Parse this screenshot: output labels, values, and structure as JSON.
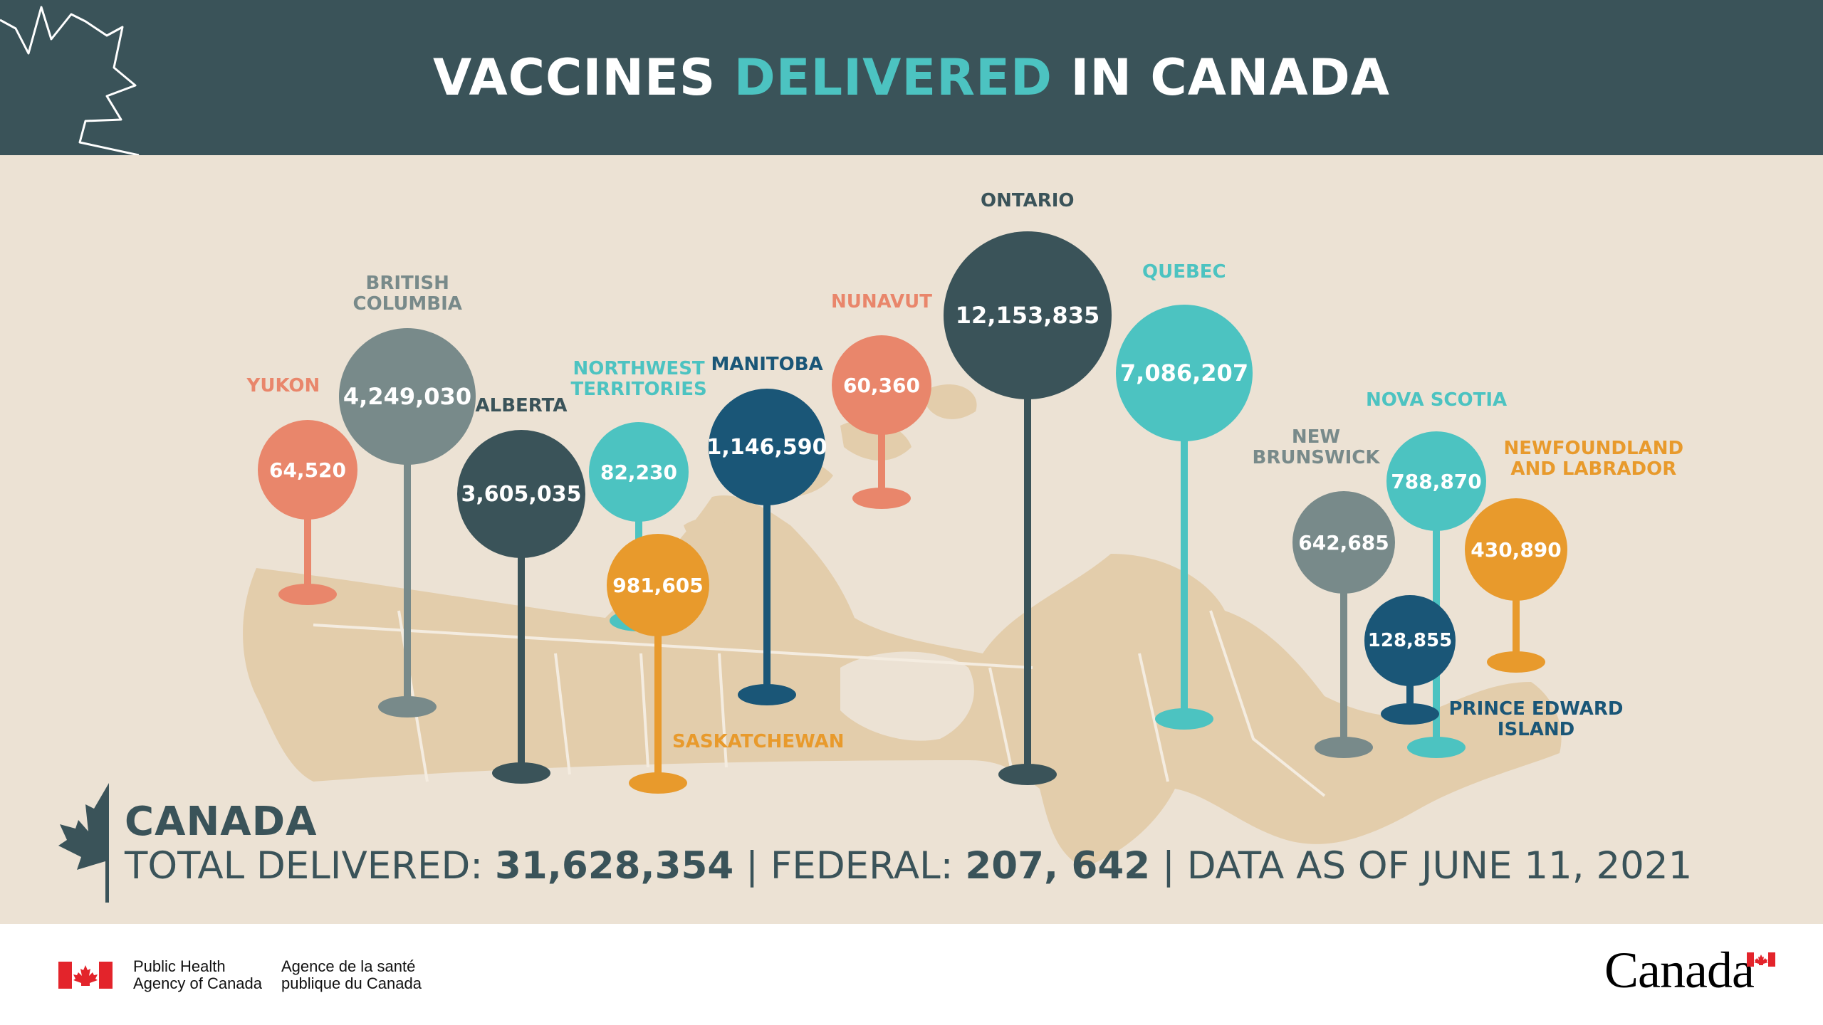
{
  "title": {
    "part1": "VACCINES ",
    "highlight": "DELIVERED",
    "part2": " IN CANADA"
  },
  "colors": {
    "header": "#3a5359",
    "highlight": "#4cc3c1",
    "salmon": "#e9866b",
    "grey": "#788a8a",
    "dark": "#3a5359",
    "teal": "#4cc3c1",
    "navy": "#1a5677",
    "orange": "#e89a2c",
    "map_bg": "#ece2d4",
    "land": "#e3cdab"
  },
  "pins": [
    {
      "id": "yukon",
      "label": "YUKON",
      "value": "64,520",
      "color": "salmon"
    },
    {
      "id": "british-columbia",
      "label": "BRITISH\nCOLUMBIA",
      "value": "4,249,030",
      "color": "grey"
    },
    {
      "id": "alberta",
      "label": "ALBERTA",
      "value": "3,605,035",
      "color": "dark"
    },
    {
      "id": "northwest-territories",
      "label": "NORTHWEST\nTERRITORIES",
      "value": "82,230",
      "color": "teal"
    },
    {
      "id": "saskatchewan",
      "label": "SASKATCHEWAN",
      "value": "981,605",
      "color": "orange"
    },
    {
      "id": "manitoba",
      "label": "MANITOBA",
      "value": "1,146,590",
      "color": "navy"
    },
    {
      "id": "nunavut",
      "label": "NUNAVUT",
      "value": "60,360",
      "color": "salmon"
    },
    {
      "id": "ontario",
      "label": "ONTARIO",
      "value": "12,153,835",
      "color": "dark"
    },
    {
      "id": "quebec",
      "label": "QUEBEC",
      "value": "7,086,207",
      "color": "teal"
    },
    {
      "id": "new-brunswick",
      "label": "NEW\nBRUNSWICK",
      "value": "642,685",
      "color": "grey"
    },
    {
      "id": "nova-scotia",
      "label": "NOVA SCOTIA",
      "value": "788,870",
      "color": "teal"
    },
    {
      "id": "prince-edward-island",
      "label": "PRINCE EDWARD\nISLAND",
      "value": "128,855",
      "color": "navy"
    },
    {
      "id": "newfoundland-and-labrador",
      "label": "NEWFOUNDLAND\nAND LABRADOR",
      "value": "430,890",
      "color": "orange"
    }
  ],
  "summary": {
    "title": "CANADA",
    "total_label": "TOTAL DELIVERED: ",
    "total_value": "31,628,354",
    "sep1": " | ",
    "federal_label": "FEDERAL: ",
    "federal_value": "207, 642",
    "sep2": " | ",
    "date_text": "DATA AS OF JUNE 11, 2021"
  },
  "footer": {
    "agency_en": "Public Health\nAgency of Canada",
    "agency_fr": "Agence de la santé\npublique du Canada",
    "wordmark": "Canada"
  },
  "icons": [
    "maple-leaf-outline-icon",
    "maple-leaf-icon",
    "canada-flag-icon"
  ]
}
